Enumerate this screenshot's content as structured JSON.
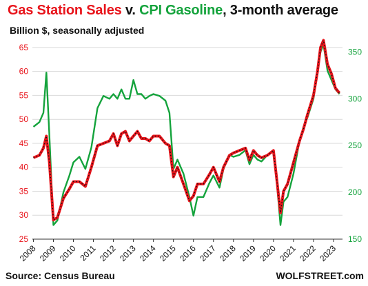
{
  "chart_data": {
    "type": "line",
    "title_parts": {
      "series1": "Gas Station Sales",
      "connector": " v. ",
      "series2": "CPI Gasoline",
      "suffix": ", 3-month average"
    },
    "subtitle": "Billion $, seasonally adjusted",
    "source": "Source: Census Bureau",
    "credit": "WOLFSTREET.com",
    "x_ticks": [
      "2008",
      "2009",
      "2010",
      "2011",
      "2012",
      "2013",
      "2014",
      "2015",
      "2016",
      "2017",
      "2018",
      "2019",
      "2020",
      "2021",
      "2022",
      "2023"
    ],
    "y_left": {
      "label": "Billion $",
      "range": [
        25,
        67
      ],
      "ticks": [
        25,
        30,
        35,
        40,
        45,
        50,
        55,
        60,
        65
      ],
      "color": "#e8141b"
    },
    "y_right": {
      "label": "CPI Gasoline",
      "range": [
        150,
        365
      ],
      "ticks": [
        150,
        200,
        250,
        300,
        350
      ],
      "color": "#14a33c"
    },
    "series": [
      {
        "name": "Gas Station Sales",
        "axis": "left",
        "color": "#e8141b",
        "x": [
          2008.0,
          2008.3,
          2008.5,
          2008.65,
          2008.8,
          2009.0,
          2009.2,
          2009.5,
          2009.8,
          2010.0,
          2010.3,
          2010.6,
          2010.9,
          2011.2,
          2011.5,
          2011.8,
          2012.0,
          2012.2,
          2012.4,
          2012.6,
          2012.8,
          2013.0,
          2013.2,
          2013.4,
          2013.6,
          2013.8,
          2014.0,
          2014.3,
          2014.6,
          2014.8,
          2015.0,
          2015.2,
          2015.5,
          2015.8,
          2016.0,
          2016.2,
          2016.5,
          2016.8,
          2017.0,
          2017.3,
          2017.5,
          2017.8,
          2018.0,
          2018.3,
          2018.6,
          2018.8,
          2019.0,
          2019.2,
          2019.4,
          2019.7,
          2020.0,
          2020.15,
          2020.35,
          2020.5,
          2020.7,
          2021.0,
          2021.3,
          2021.5,
          2021.7,
          2022.0,
          2022.2,
          2022.35,
          2022.5,
          2022.7,
          2022.9,
          2023.1,
          2023.3
        ],
        "values": [
          42.0,
          42.5,
          44.0,
          46.5,
          41.0,
          29.0,
          29.5,
          33.5,
          35.5,
          37.0,
          37.0,
          36.0,
          40.0,
          44.5,
          45.0,
          45.5,
          47.0,
          44.5,
          47.0,
          47.5,
          45.5,
          46.5,
          47.5,
          46.0,
          46.0,
          45.5,
          46.5,
          46.5,
          45.0,
          44.5,
          38.0,
          40.0,
          36.5,
          33.0,
          34.0,
          36.5,
          36.5,
          38.5,
          40.0,
          37.0,
          40.0,
          42.5,
          43.0,
          43.5,
          44.0,
          41.5,
          43.5,
          42.5,
          42.0,
          42.5,
          43.5,
          38.0,
          30.5,
          35.0,
          36.5,
          41.0,
          45.5,
          48.0,
          51.0,
          55.0,
          60.0,
          65.0,
          66.5,
          61.5,
          59.5,
          56.5,
          55.5
        ]
      },
      {
        "name": "CPI Gasoline",
        "axis": "right",
        "color": "#14a33c",
        "x": [
          2008.0,
          2008.3,
          2008.5,
          2008.65,
          2008.8,
          2009.0,
          2009.2,
          2009.5,
          2009.8,
          2010.0,
          2010.3,
          2010.6,
          2010.9,
          2011.2,
          2011.5,
          2011.8,
          2012.0,
          2012.2,
          2012.4,
          2012.6,
          2012.8,
          2013.0,
          2013.2,
          2013.4,
          2013.6,
          2013.8,
          2014.0,
          2014.3,
          2014.6,
          2014.8,
          2015.0,
          2015.2,
          2015.5,
          2015.8,
          2016.0,
          2016.2,
          2016.5,
          2016.8,
          2017.0,
          2017.3,
          2017.5,
          2017.8,
          2018.0,
          2018.3,
          2018.6,
          2018.8,
          2019.0,
          2019.2,
          2019.4,
          2019.7,
          2020.0,
          2020.15,
          2020.35,
          2020.5,
          2020.7,
          2021.0,
          2021.3,
          2021.5,
          2021.7,
          2022.0,
          2022.2,
          2022.35,
          2022.5,
          2022.7,
          2022.9,
          2023.1,
          2023.3
        ],
        "values": [
          270,
          275,
          285,
          328,
          260,
          165,
          170,
          200,
          218,
          232,
          238,
          225,
          248,
          290,
          303,
          300,
          305,
          300,
          310,
          300,
          300,
          320,
          305,
          305,
          300,
          303,
          305,
          303,
          298,
          285,
          225,
          235,
          220,
          195,
          175,
          195,
          195,
          210,
          218,
          205,
          225,
          240,
          238,
          240,
          245,
          230,
          240,
          235,
          233,
          240,
          245,
          215,
          165,
          190,
          195,
          220,
          255,
          270,
          280,
          300,
          330,
          350,
          358,
          330,
          320,
          310,
          305
        ]
      }
    ]
  }
}
